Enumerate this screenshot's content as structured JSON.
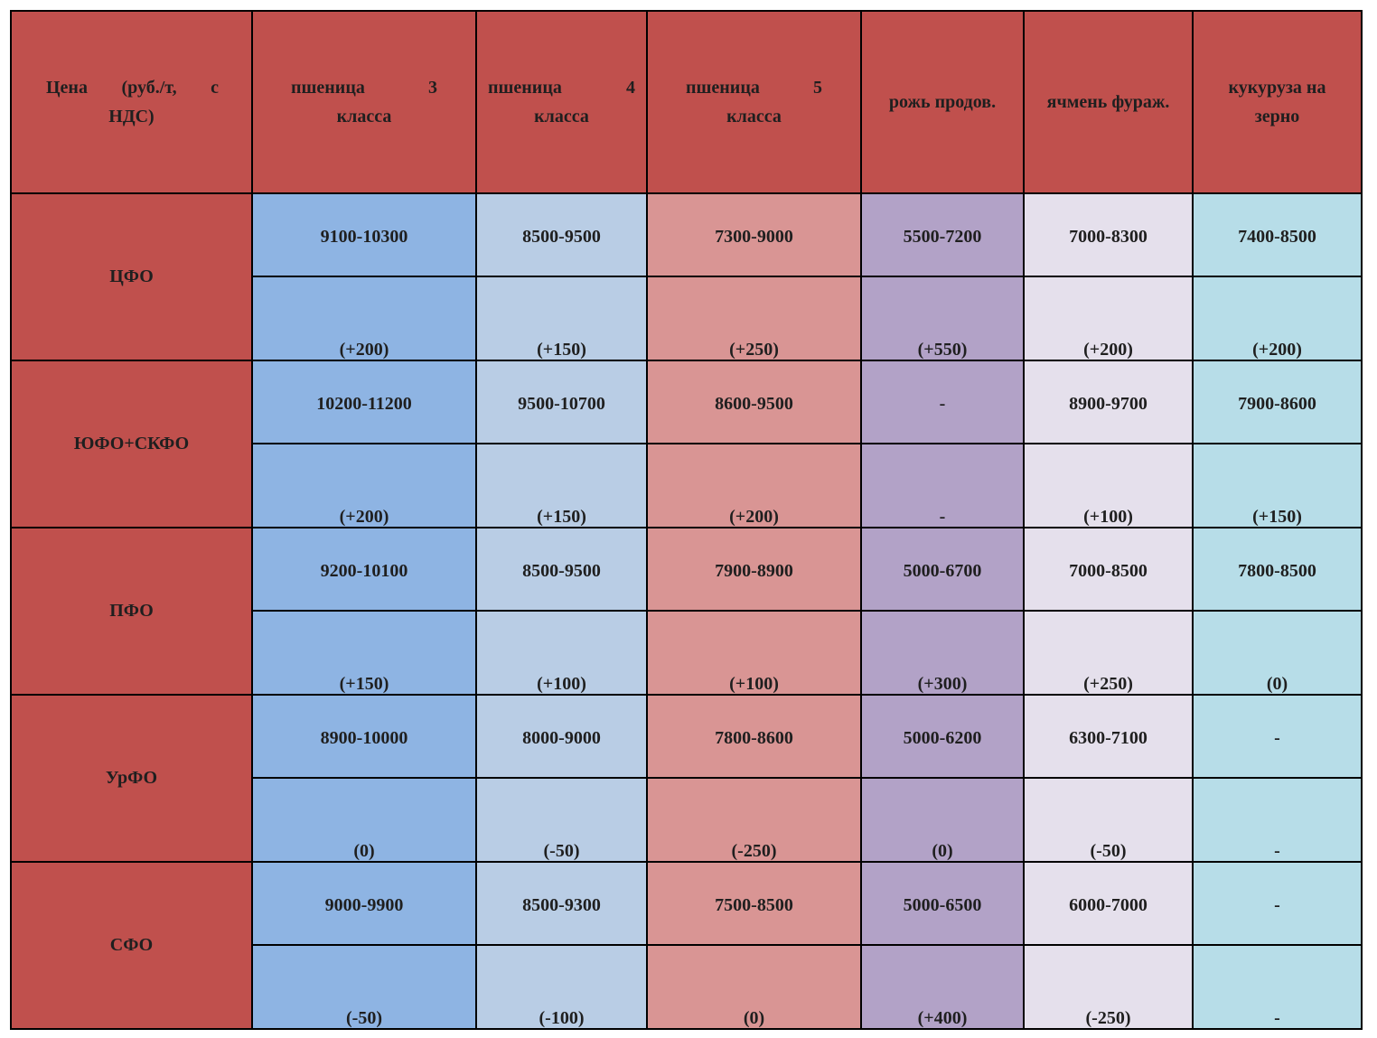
{
  "header": {
    "corner_line1_a": "Цена",
    "corner_line1_b": "(руб./т, с",
    "corner_line2": "НДС)",
    "columns": [
      {
        "word": "пшеница",
        "num": "3",
        "line2": "класса"
      },
      {
        "word": "пшеница",
        "num": "4",
        "line2": "класса"
      },
      {
        "word": "пшеница",
        "num": "5",
        "line2": "класса"
      },
      {
        "label": "рожь продов."
      },
      {
        "label": "ячмень фураж."
      },
      {
        "line1": "кукуруза на",
        "line2": "зерно"
      }
    ]
  },
  "rows": [
    {
      "district": "ЦФО",
      "prices": [
        "9100-10300",
        "8500-9500",
        "7300-9000",
        "5500-7200",
        "7000-8300",
        "7400-8500"
      ],
      "changes": [
        "(+200)",
        "(+150)",
        "(+250)",
        "(+550)",
        "(+200)",
        "(+200)"
      ]
    },
    {
      "district": "ЮФО+СКФО",
      "prices": [
        "10200-11200",
        "9500-10700",
        "8600-9500",
        "-",
        "8900-9700",
        "7900-8600"
      ],
      "changes": [
        "(+200)",
        "(+150)",
        "(+200)",
        "-",
        "(+100)",
        "(+150)"
      ]
    },
    {
      "district": "ПФО",
      "prices": [
        "9200-10100",
        "8500-9500",
        "7900-8900",
        "5000-6700",
        "7000-8500",
        "7800-8500"
      ],
      "changes": [
        "(+150)",
        "(+100)",
        "(+100)",
        "(+300)",
        "(+250)",
        "(0)"
      ]
    },
    {
      "district": "УрФО",
      "prices": [
        "8900-10000",
        "8000-9000",
        "7800-8600",
        "5000-6200",
        "6300-7100",
        "-"
      ],
      "changes": [
        "(0)",
        "(-50)",
        "(-250)",
        "(0)",
        "(-50)",
        "-"
      ]
    },
    {
      "district": "СФО",
      "prices": [
        "9000-9900",
        "8500-9300",
        "7500-8500",
        "5000-6500",
        "6000-7000",
        "-"
      ],
      "changes": [
        "(-50)",
        "(-100)",
        "(0)",
        "(+400)",
        "(-250)",
        "-"
      ]
    }
  ],
  "colors": {
    "header_bg": "#c0504d",
    "col_wheat3": "#8eb4e3",
    "col_wheat4": "#b9cde5",
    "col_wheat5": "#d99594",
    "col_rye": "#b2a2c7",
    "col_barley": "#e5e0ec",
    "col_corn": "#b7dde8"
  }
}
